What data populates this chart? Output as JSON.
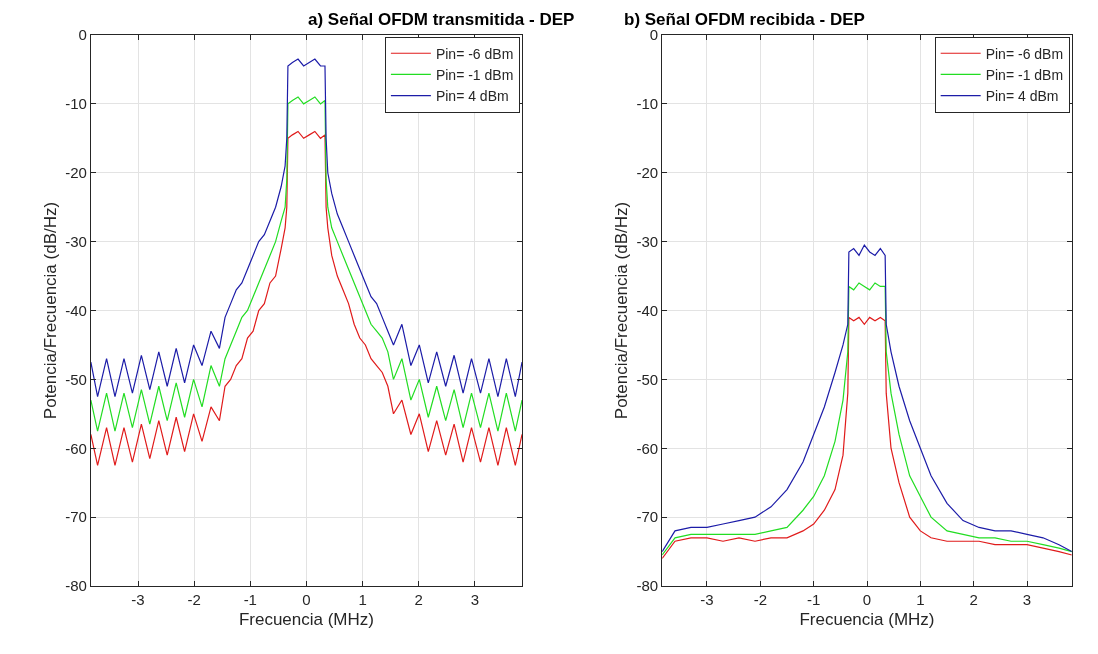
{
  "chart_data": [
    {
      "type": "line",
      "title": "a) Señal OFDM transmitida - DEP",
      "xlabel": "Frecuencia (MHz)",
      "ylabel": "Potencia/Frecuencia (dB/Hz)",
      "x": [
        -3.84,
        -3.72,
        -3.56,
        -3.41,
        -3.25,
        -3.1,
        -2.94,
        -2.79,
        -2.63,
        -2.48,
        -2.32,
        -2.17,
        -2.01,
        -1.86,
        -1.7,
        -1.55,
        -1.45,
        -1.35,
        -1.25,
        -1.15,
        -1.05,
        -0.95,
        -0.85,
        -0.75,
        -0.65,
        -0.55,
        -0.45,
        -0.38,
        -0.35,
        -0.33,
        -0.25,
        -0.15,
        -0.05,
        0.05,
        0.15,
        0.25,
        0.33,
        0.35,
        0.38,
        0.45,
        0.55,
        0.65,
        0.75,
        0.85,
        0.95,
        1.05,
        1.15,
        1.25,
        1.35,
        1.45,
        1.55,
        1.7,
        1.86,
        2.01,
        2.17,
        2.32,
        2.48,
        2.63,
        2.79,
        2.94,
        3.1,
        3.25,
        3.41,
        3.56,
        3.72,
        3.84
      ],
      "series": [
        {
          "name": "Pin= -6 dBm",
          "color": "#e01b1b",
          "values": [
            -58,
            -62.5,
            -57,
            -62.5,
            -57,
            -62,
            -56.5,
            -61.5,
            -56,
            -61,
            -55.5,
            -60.5,
            -55,
            -59,
            -54,
            -56,
            -51,
            -50,
            -48,
            -47,
            -44,
            -43,
            -40,
            -39,
            -36,
            -35,
            -31,
            -28,
            -25,
            -15,
            -14.5,
            -14,
            -15,
            -14.5,
            -14,
            -15,
            -14.5,
            -25,
            -28,
            -32,
            -35,
            -37,
            -39,
            -42,
            -44,
            -45,
            -47,
            -48,
            -49,
            -51,
            -55,
            -53,
            -58,
            -55,
            -60.5,
            -56,
            -61,
            -56.5,
            -62,
            -57,
            -62,
            -57,
            -62.5,
            -57,
            -62.5,
            -58
          ]
        },
        {
          "name": "Pin= -1 dBm",
          "color": "#22dd22",
          "values": [
            -53,
            -57.5,
            -52,
            -57.5,
            -52,
            -57,
            -51.5,
            -56.5,
            -51,
            -56,
            -50.5,
            -55.5,
            -50,
            -54,
            -48,
            -51,
            -47,
            -45,
            -43,
            -41,
            -40,
            -38,
            -36,
            -34,
            -32,
            -30,
            -27,
            -25,
            -21,
            -10,
            -9.5,
            -9,
            -10,
            -9.5,
            -9,
            -10,
            -9.5,
            -21,
            -25,
            -28,
            -30,
            -32,
            -34,
            -36,
            -38,
            -40,
            -42,
            -43,
            -44,
            -46,
            -50,
            -47,
            -53,
            -50,
            -55.5,
            -51,
            -56,
            -51.5,
            -57,
            -52,
            -57,
            -52,
            -57.5,
            -52,
            -57.5,
            -53
          ]
        },
        {
          "name": "Pin= 4 dBm",
          "color": "#1c1ca8",
          "values": [
            -47.5,
            -52.5,
            -47,
            -52.5,
            -47,
            -52,
            -46.5,
            -51.5,
            -46,
            -51,
            -45.5,
            -50.5,
            -45,
            -48,
            -43,
            -45.5,
            -41,
            -39,
            -37,
            -36,
            -34,
            -32,
            -30,
            -29,
            -27,
            -25,
            -22,
            -19,
            -15,
            -4.5,
            -4,
            -3.5,
            -4.5,
            -4,
            -3.5,
            -4.5,
            -4.5,
            -15,
            -20,
            -23,
            -26,
            -28,
            -30,
            -32,
            -34,
            -36,
            -38,
            -39,
            -41,
            -43,
            -45,
            -42,
            -48,
            -45,
            -50.5,
            -46,
            -51,
            -46.5,
            -52,
            -47,
            -52,
            -47,
            -52.5,
            -47,
            -52.5,
            -47.5
          ]
        }
      ],
      "xlim": [
        -3.84,
        3.84
      ],
      "ylim": [
        -80,
        0
      ],
      "xticks": [
        -3,
        -2,
        -1,
        0,
        1,
        2,
        3
      ],
      "yticks": [
        -80,
        -70,
        -60,
        -50,
        -40,
        -30,
        -20,
        -10,
        0
      ],
      "grid": true,
      "legend": "top right"
    },
    {
      "type": "line",
      "title": "b) Señal OFDM recibida - DEP",
      "xlabel": "Frecuencia (MHz)",
      "ylabel": "Potencia/Frecuencia (dB/Hz)",
      "x": [
        -3.84,
        -3.6,
        -3.3,
        -3.0,
        -2.7,
        -2.4,
        -2.1,
        -1.8,
        -1.5,
        -1.2,
        -1.0,
        -0.8,
        -0.6,
        -0.45,
        -0.36,
        -0.34,
        -0.25,
        -0.15,
        -0.05,
        0.05,
        0.15,
        0.25,
        0.34,
        0.36,
        0.45,
        0.6,
        0.8,
        1.0,
        1.2,
        1.5,
        1.8,
        2.1,
        2.4,
        2.7,
        3.0,
        3.3,
        3.6,
        3.84
      ],
      "series": [
        {
          "name": "Pin= -6 dBm",
          "color": "#e01b1b",
          "values": [
            -76,
            -73.5,
            -73,
            -73,
            -73.5,
            -73,
            -73.5,
            -73,
            -73,
            -72,
            -71,
            -69,
            -66,
            -61,
            -52,
            -41,
            -41.5,
            -41,
            -42,
            -41,
            -41.5,
            -41,
            -41.5,
            -52,
            -60,
            -65,
            -70,
            -72,
            -73,
            -73.5,
            -73.5,
            -73.5,
            -74,
            -74,
            -74,
            -74.5,
            -75,
            -75.5
          ]
        },
        {
          "name": "Pin= -1 dBm",
          "color": "#22dd22",
          "values": [
            -75.5,
            -73,
            -72.5,
            -72.5,
            -72.5,
            -72.5,
            -72.5,
            -72,
            -71.5,
            -69,
            -67,
            -64,
            -59,
            -53,
            -46,
            -36.5,
            -37,
            -36,
            -36.5,
            -37,
            -36,
            -36.5,
            -36.5,
            -46,
            -52,
            -58,
            -64,
            -67,
            -70,
            -72,
            -72.5,
            -73,
            -73,
            -73.5,
            -73.5,
            -74,
            -74.5,
            -75
          ]
        },
        {
          "name": "Pin= 4 dBm",
          "color": "#1c1ca8",
          "values": [
            -75,
            -72,
            -71.5,
            -71.5,
            -71,
            -70.5,
            -70,
            -68.5,
            -66,
            -62,
            -58,
            -54,
            -49,
            -45,
            -42,
            -31.5,
            -31,
            -32,
            -30.5,
            -31.5,
            -32,
            -31,
            -32,
            -42,
            -46,
            -51,
            -56,
            -60,
            -64,
            -68,
            -70.5,
            -71.5,
            -72,
            -72,
            -72.5,
            -73,
            -74,
            -75
          ]
        }
      ],
      "xlim": [
        -3.84,
        3.84
      ],
      "ylim": [
        -80,
        0
      ],
      "xticks": [
        -3,
        -2,
        -1,
        0,
        1,
        2,
        3
      ],
      "yticks": [
        -80,
        -70,
        -60,
        -50,
        -40,
        -30,
        -20,
        -10,
        0
      ],
      "grid": true,
      "legend": "top right"
    }
  ]
}
